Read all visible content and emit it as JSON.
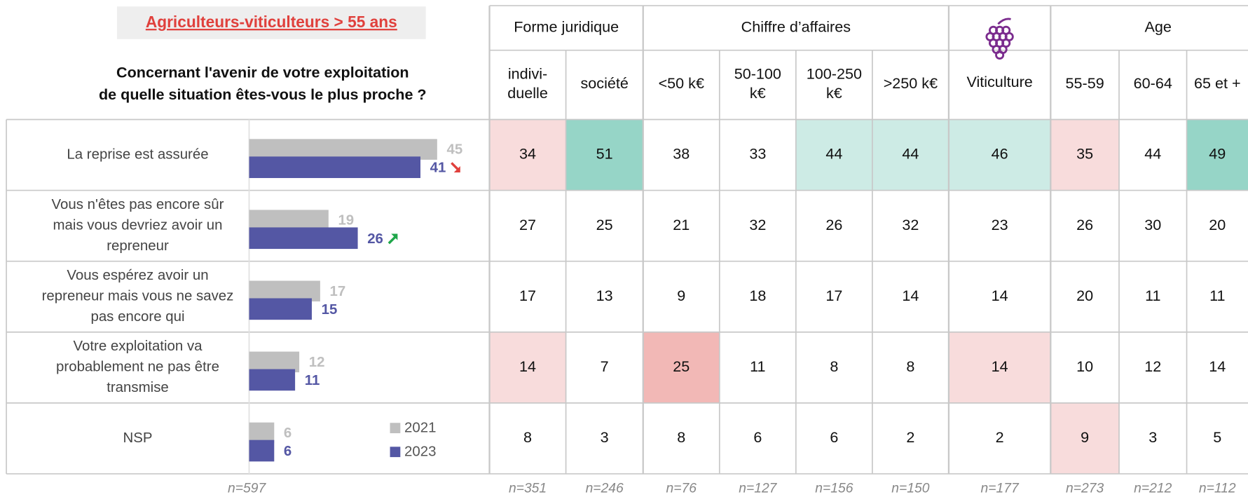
{
  "chart_data": {
    "type": "bar",
    "orientation": "horizontal",
    "title": "Agriculteurs-viticulteurs > 55 ans",
    "question": [
      "Concernant l'avenir de votre exploitation",
      "de quelle situation êtes-vous le plus proche ?"
    ],
    "categories": [
      [
        "La reprise est assurée"
      ],
      [
        "Vous n'êtes pas encore sûr",
        "mais vous devriez avoir un",
        "repreneur"
      ],
      [
        "Vous espérez avoir un",
        "repreneur mais vous ne savez",
        "pas encore qui"
      ],
      [
        "Votre exploitation va",
        "probablement ne pas être",
        "transmise"
      ],
      [
        "NSP"
      ]
    ],
    "series": [
      {
        "name": "2021",
        "color": "#bfbfbf",
        "values": [
          45,
          19,
          17,
          12,
          6
        ]
      },
      {
        "name": "2023",
        "color": "#5457a4",
        "values": [
          41,
          26,
          15,
          11,
          6
        ],
        "trend": [
          "down",
          "up",
          null,
          null,
          null
        ]
      }
    ],
    "xlim": [
      0,
      60
    ],
    "sample": "n=597"
  },
  "table": {
    "groups": [
      {
        "label": "Forme juridique",
        "span": 2
      },
      {
        "label": "Chiffre d’affaires",
        "span": 4
      },
      {
        "icon": "grape",
        "span": 1
      },
      {
        "label": "Age",
        "span": 3
      }
    ],
    "columns": [
      [
        "indivi-",
        "duelle"
      ],
      [
        "société"
      ],
      [
        "<50 k€"
      ],
      [
        "50-100",
        "k€"
      ],
      [
        "100-250",
        "k€"
      ],
      [
        ">250 k€"
      ],
      [
        "Viticulture"
      ],
      [
        "55-59"
      ],
      [
        "60-64"
      ],
      [
        "65 et +"
      ]
    ],
    "rows": [
      [
        34,
        51,
        38,
        33,
        44,
        44,
        46,
        35,
        44,
        49
      ],
      [
        27,
        25,
        21,
        32,
        26,
        32,
        23,
        26,
        30,
        20
      ],
      [
        17,
        13,
        9,
        18,
        17,
        14,
        14,
        20,
        11,
        11
      ],
      [
        14,
        7,
        25,
        11,
        8,
        8,
        14,
        10,
        12,
        14
      ],
      [
        8,
        3,
        8,
        6,
        6,
        2,
        2,
        9,
        3,
        5
      ]
    ],
    "cell_colors": [
      [
        "#f8dcdc",
        "#96d5c7",
        null,
        null,
        "#cdebe5",
        "#cdebe5",
        "#cdebe5",
        "#f8dcdc",
        null,
        "#96d5c7"
      ],
      [
        null,
        null,
        null,
        null,
        null,
        null,
        null,
        null,
        null,
        null
      ],
      [
        null,
        null,
        null,
        null,
        null,
        null,
        null,
        null,
        null,
        null
      ],
      [
        "#f8dcdc",
        null,
        "#f2b8b6",
        null,
        null,
        null,
        "#f8dcdc",
        null,
        null,
        null
      ],
      [
        null,
        null,
        null,
        null,
        null,
        null,
        null,
        "#f8dcdc",
        null,
        null
      ]
    ],
    "samples": [
      "n=351",
      "n=246",
      "n=76",
      "n=127",
      "n=156",
      "n=150",
      "n=177",
      "n=273",
      "n=212",
      "n=112"
    ]
  }
}
